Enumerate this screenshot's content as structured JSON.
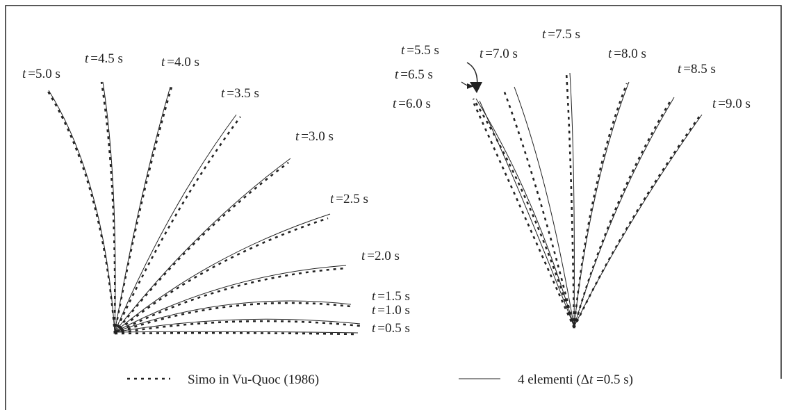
{
  "labels": [
    {
      "symbol": "t",
      "rest": "=5.0 s"
    },
    {
      "symbol": "t",
      "rest": "=4.5 s"
    },
    {
      "symbol": "t",
      "rest": "=4.0 s"
    },
    {
      "symbol": "t",
      "rest": "=3.5 s"
    },
    {
      "symbol": "t",
      "rest": "=3.0 s"
    },
    {
      "symbol": "t",
      "rest": "=2.5 s"
    },
    {
      "symbol": "t",
      "rest": "=2.0 s"
    },
    {
      "symbol": "t",
      "rest": "=1.5 s"
    },
    {
      "symbol": "t",
      "rest": "=1.0 s"
    },
    {
      "symbol": "t",
      "rest": "=0.5 s"
    },
    {
      "symbol": "t",
      "rest": "=5.5 s"
    },
    {
      "symbol": "t",
      "rest": "=6.5 s"
    },
    {
      "symbol": "t",
      "rest": "=6.0 s"
    },
    {
      "symbol": "t",
      "rest": "=7.0 s"
    },
    {
      "symbol": "t",
      "rest": "=7.5 s"
    },
    {
      "symbol": "t",
      "rest": "=8.0 s"
    },
    {
      "symbol": "t",
      "rest": "=8.5 s"
    },
    {
      "symbol": "t",
      "rest": "=9.0 s"
    }
  ],
  "legend": {
    "reference": "Simo in Vu-Quoc (1986)",
    "model": {
      "before": "4 elementi (Δ",
      "symbol": "t",
      "after": " =0.5 s)"
    }
  }
}
